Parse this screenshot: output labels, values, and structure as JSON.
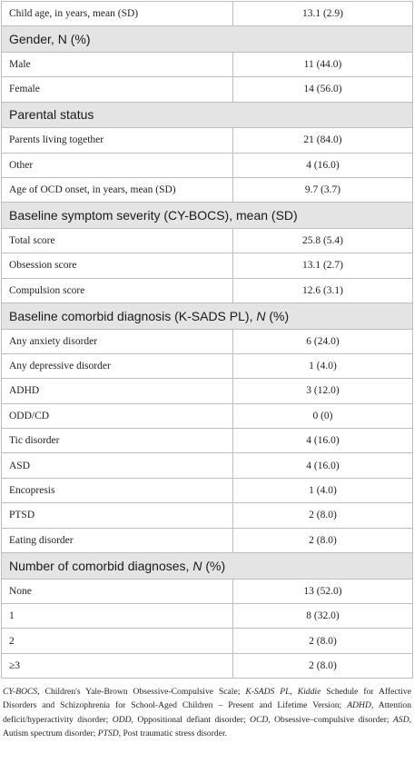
{
  "rows": [
    {
      "type": "data",
      "label": "Child age, in years, mean (SD)",
      "value": "13.1 (2.9)"
    },
    {
      "type": "section",
      "label": "Gender, N (%)"
    },
    {
      "type": "data",
      "label": "Male",
      "value": "11 (44.0)"
    },
    {
      "type": "data",
      "label": "Female",
      "value": "14 (56.0)"
    },
    {
      "type": "section",
      "label": "Parental status"
    },
    {
      "type": "data",
      "label": "Parents living together",
      "value": "21 (84.0)"
    },
    {
      "type": "data",
      "label": "Other",
      "value": "4 (16.0)"
    },
    {
      "type": "data",
      "label": "Age of OCD onset, in years, mean (SD)",
      "value": "9.7 (3.7)"
    },
    {
      "type": "section",
      "label": "Baseline symptom severity (CY-BOCS), mean (SD)"
    },
    {
      "type": "data",
      "label": "Total score",
      "value": "25.8 (5.4)"
    },
    {
      "type": "data",
      "label": "Obsession score",
      "value": "13.1 (2.7)"
    },
    {
      "type": "data",
      "label": "Compulsion score",
      "value": "12.6 (3.1)"
    },
    {
      "type": "section",
      "label": "Baseline comorbid diagnosis (K-SADS PL), ",
      "italic": "N",
      "suffix": " (%)"
    },
    {
      "type": "data",
      "label": "Any anxiety disorder",
      "value": "6 (24.0)"
    },
    {
      "type": "data",
      "label": "Any depressive disorder",
      "value": "1 (4.0)"
    },
    {
      "type": "data",
      "label": "ADHD",
      "value": "3 (12.0)"
    },
    {
      "type": "data",
      "label": "ODD/CD",
      "value": "0 (0)"
    },
    {
      "type": "data",
      "label": "Tic disorder",
      "value": "4 (16.0)"
    },
    {
      "type": "data",
      "label": "ASD",
      "value": "4 (16.0)"
    },
    {
      "type": "data",
      "label": "Encopresis",
      "value": "1 (4.0)"
    },
    {
      "type": "data",
      "label": "PTSD",
      "value": "2 (8.0)"
    },
    {
      "type": "data",
      "label": "Eating disorder",
      "value": "2 (8.0)"
    },
    {
      "type": "section",
      "label": "Number of comorbid diagnoses, ",
      "italic": "N",
      "suffix": " (%)"
    },
    {
      "type": "data",
      "label": "None",
      "value": "13 (52.0)"
    },
    {
      "type": "data",
      "label": "1",
      "value": "8 (32.0)"
    },
    {
      "type": "data",
      "label": "2",
      "value": "2 (8.0)"
    },
    {
      "type": "data",
      "label": "≥3",
      "value": "2 (8.0)"
    }
  ],
  "footnote": [
    {
      "abbr": "CY-BOCS,",
      "text": " Children's Yale-Brown Obsessive-Compulsive Scale; "
    },
    {
      "abbr": "K-SADS PL, Kiddie",
      "text": " Schedule for Affective Disorders and Schizophrenia for School-Aged Children – Present and Lifetime Version; "
    },
    {
      "abbr": "ADHD,",
      "text": " Attention deficit/hyperactivity disorder; "
    },
    {
      "abbr": "ODD,",
      "text": " Oppositional defiant disorder; "
    },
    {
      "abbr": "OCD,",
      "text": " Obsessive–compulsive disorder; "
    },
    {
      "abbr": "ASD,",
      "text": " Autism spectrum disorder; "
    },
    {
      "abbr": "PTSD,",
      "text": " Post traumatic stress disorder."
    }
  ]
}
